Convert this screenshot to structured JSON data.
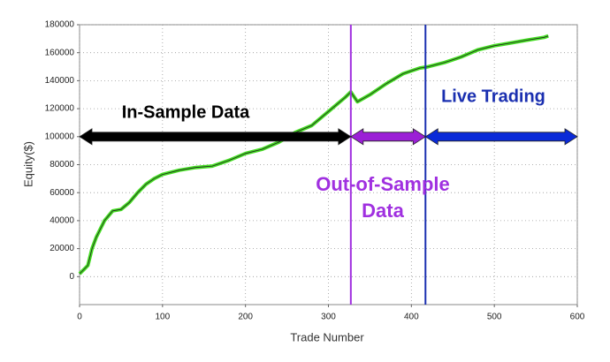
{
  "chart_data": {
    "type": "line",
    "x_label": "Trade Number",
    "y_label": "Equity($)",
    "xlim": [
      0,
      600
    ],
    "xticks": [
      0,
      100,
      200,
      300,
      400,
      500,
      600
    ],
    "ylim": [
      -20000,
      180000
    ],
    "yticks": [
      0,
      20000,
      40000,
      60000,
      80000,
      100000,
      120000,
      140000,
      160000,
      180000
    ],
    "grid": true,
    "series": [
      {
        "color": "#44dd22",
        "x": [
          0,
          5,
          10,
          15,
          20,
          30,
          40,
          50,
          60,
          70,
          80,
          90,
          100,
          120,
          140,
          160,
          180,
          200,
          220,
          240,
          260,
          280,
          300,
          320,
          327,
          335,
          350,
          370,
          390,
          410,
          420,
          440,
          460,
          480,
          500,
          520,
          540,
          560,
          565
        ],
        "values": [
          2000,
          5000,
          8000,
          20000,
          28000,
          40000,
          47000,
          48000,
          53000,
          60000,
          66000,
          70000,
          73000,
          76000,
          78000,
          79000,
          83000,
          88000,
          91000,
          96000,
          103000,
          108000,
          118000,
          128000,
          132000,
          125000,
          130000,
          138000,
          145000,
          149000,
          150000,
          153000,
          157000,
          162000,
          165000,
          167000,
          169000,
          171000,
          172000
        ]
      }
    ],
    "dividers": [
      {
        "x": 327,
        "color": "#a030e0"
      },
      {
        "x": 417,
        "color": "#1a2fb0"
      }
    ],
    "regions": [
      {
        "label": [
          "In-Sample Data"
        ],
        "from": 0,
        "to": 327,
        "y": 100000,
        "color": "#000000",
        "fill": "#000000"
      },
      {
        "label": [
          "Out-of-Sample",
          "Data"
        ],
        "from": 327,
        "to": 417,
        "y": 100000,
        "color": "#a030e0",
        "fill": "#9b1fd6"
      },
      {
        "label": [
          "Live Trading"
        ],
        "from": 417,
        "to": 600,
        "y": 100000,
        "color": "#1a2fb0",
        "fill": "#0a2ad8"
      }
    ]
  }
}
